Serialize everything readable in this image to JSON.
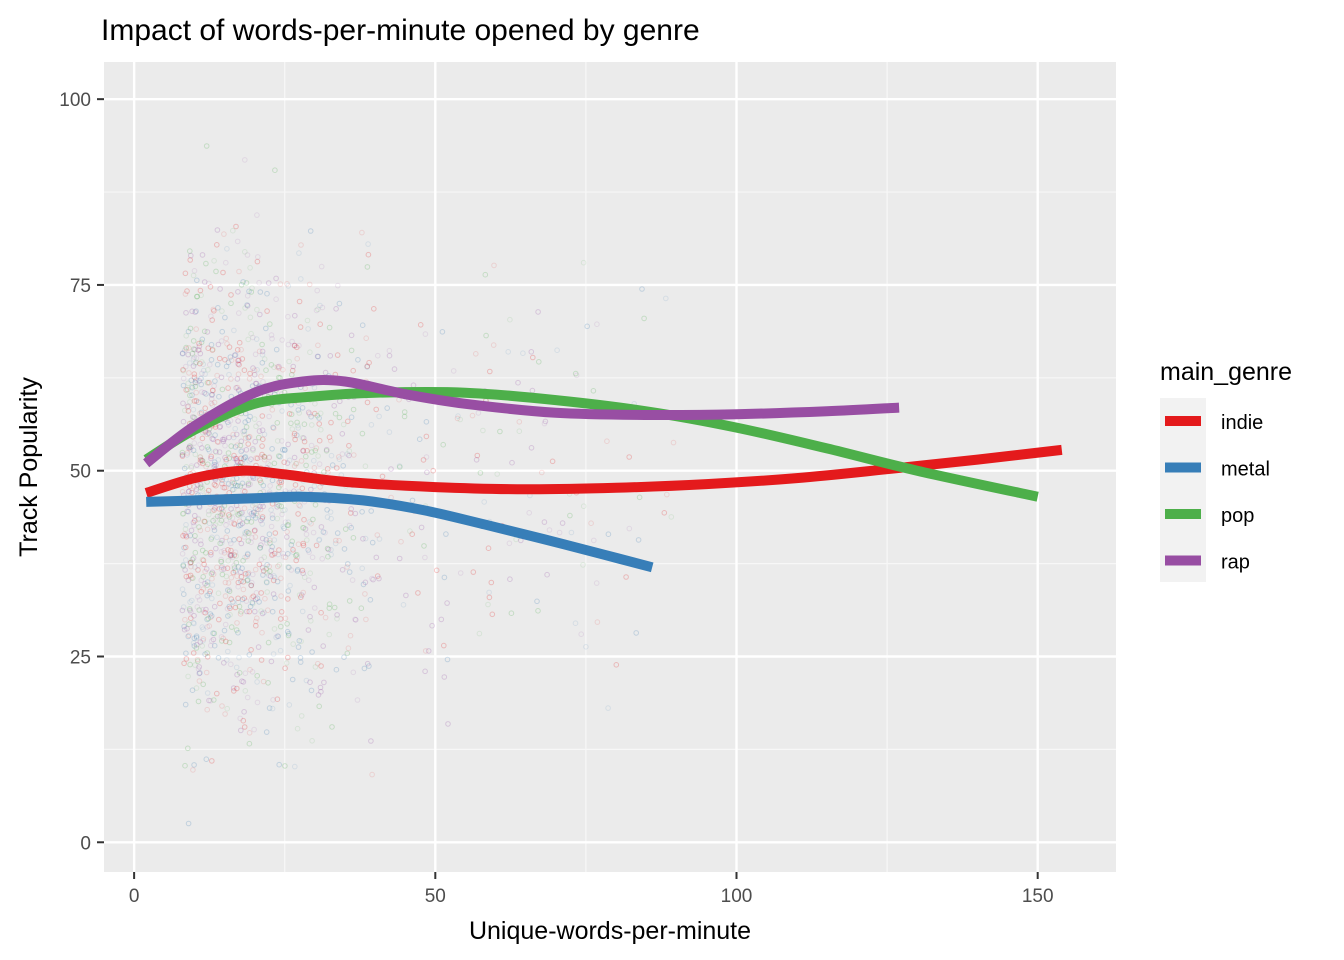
{
  "chart_data": {
    "type": "line",
    "title": "Impact of words-per-minute opened by genre",
    "xlabel": "Unique-words-per-minute",
    "ylabel": "Track Popularity",
    "xlim": [
      -5,
      163
    ],
    "ylim": [
      -4,
      105
    ],
    "x_ticks": [
      0,
      50,
      100,
      150
    ],
    "x_tick_labels": [
      "0",
      "50",
      "100",
      "150"
    ],
    "y_ticks": [
      0,
      25,
      50,
      75,
      100
    ],
    "y_tick_labels": [
      "0",
      "25",
      "50",
      "75",
      "100"
    ],
    "grid": true,
    "background": "#ebebeb",
    "legend": {
      "title": "main_genre",
      "position": "right"
    },
    "series": [
      {
        "name": "indie",
        "color": "#e41a1c",
        "x": [
          2,
          10,
          18,
          25,
          35,
          50,
          65,
          80,
          95,
          110,
          125,
          140,
          154
        ],
        "y": [
          47,
          49,
          50,
          49.5,
          48.5,
          47.8,
          47.5,
          47.7,
          48.2,
          49,
          50.2,
          51.5,
          52.8
        ]
      },
      {
        "name": "metal",
        "color": "#377eb8",
        "x": [
          2,
          10,
          20,
          28,
          38,
          48,
          58,
          68,
          78,
          86
        ],
        "y": [
          45.8,
          46,
          46.3,
          46.5,
          46,
          44.7,
          42.8,
          40.8,
          38.7,
          37
        ]
      },
      {
        "name": "pop",
        "color": "#4daf4a",
        "x": [
          2,
          10,
          20,
          30,
          40,
          55,
          70,
          85,
          100,
          115,
          130,
          150
        ],
        "y": [
          51.5,
          55.5,
          59,
          60,
          60.5,
          60.5,
          59.5,
          58,
          55.8,
          53,
          50,
          46.5
        ]
      },
      {
        "name": "rap",
        "color": "#984ea3",
        "x": [
          2,
          10,
          20,
          28,
          35,
          45,
          55,
          70,
          85,
          100,
          115,
          127
        ],
        "y": [
          51,
          56,
          60.5,
          62,
          62,
          60.3,
          59,
          57.8,
          57.5,
          57.6,
          58,
          58.5
        ]
      }
    ]
  }
}
